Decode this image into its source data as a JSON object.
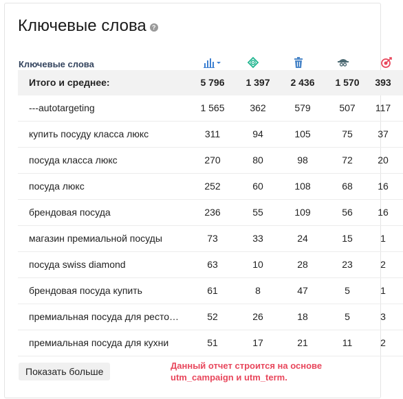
{
  "title": "Ключевые слова",
  "table": {
    "header_label": "Ключевые слова",
    "total": {
      "name": "Итого и среднее:",
      "values": [
        "5 796",
        "1 397",
        "2 436",
        "1 570",
        "393"
      ]
    },
    "rows": [
      {
        "name": "---autotargeting",
        "values": [
          "1 565",
          "362",
          "579",
          "507",
          "117"
        ]
      },
      {
        "name": "купить посуду класса люкс",
        "values": [
          "311",
          "94",
          "105",
          "75",
          "37"
        ]
      },
      {
        "name": "посуда класса люкс",
        "values": [
          "270",
          "80",
          "98",
          "72",
          "20"
        ]
      },
      {
        "name": "посуда люкс",
        "values": [
          "252",
          "60",
          "108",
          "68",
          "16"
        ]
      },
      {
        "name": "брендовая посуда",
        "values": [
          "236",
          "55",
          "109",
          "56",
          "16"
        ]
      },
      {
        "name": "магазин премиальной посуды",
        "values": [
          "73",
          "33",
          "24",
          "15",
          "1"
        ]
      },
      {
        "name": "посуда swiss diamond",
        "values": [
          "63",
          "10",
          "28",
          "23",
          "2"
        ]
      },
      {
        "name": "брендовая посуда купить",
        "values": [
          "61",
          "8",
          "47",
          "5",
          "1"
        ]
      },
      {
        "name": "премиальная посуда для ресто…",
        "values": [
          "52",
          "26",
          "18",
          "5",
          "3"
        ]
      },
      {
        "name": "премиальная посуда для кухни",
        "values": [
          "51",
          "17",
          "21",
          "11",
          "2"
        ]
      }
    ],
    "icons": [
      "bar-chart-sort-icon",
      "target-icon",
      "trash-icon",
      "visitor-icon",
      "goal-icon"
    ],
    "colors": {
      "bar": "#3b7fd1",
      "target": "#1fb58f",
      "trash": "#4a86c8",
      "visitor": "#4d6a73",
      "goal": "#e8475c"
    }
  },
  "show_more_label": "Показать больше",
  "note_lines": [
    "Данный отчет строится на основе",
    "utm_campaign и utm_term."
  ]
}
